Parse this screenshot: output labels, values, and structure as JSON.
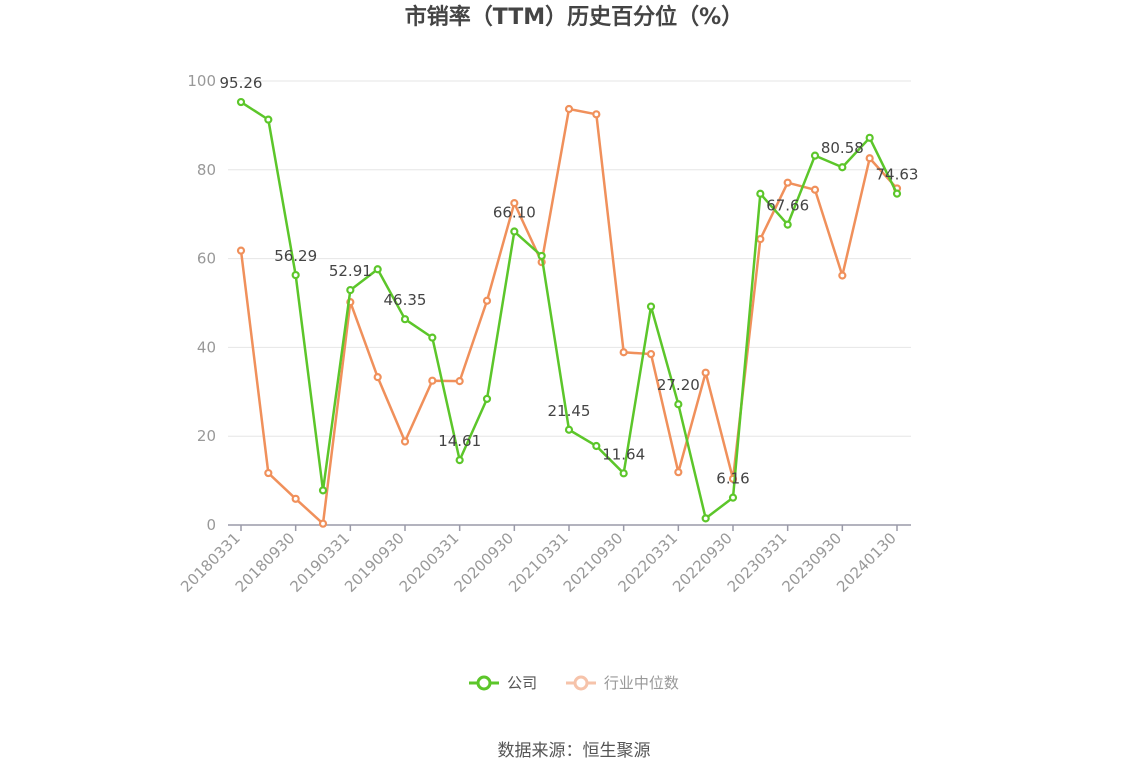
{
  "chart_data": {
    "type": "line",
    "title": "市销率（TTM）历史百分位（%）",
    "source": "数据来源：恒生聚源",
    "ylim": [
      0,
      100
    ],
    "yticks": [
      0,
      20,
      40,
      60,
      80,
      100
    ],
    "grid": true,
    "legend_position": "bottom",
    "x": [
      "20180331",
      "20180630",
      "20180930",
      "20181231",
      "20190331",
      "20190630",
      "20190930",
      "20191231",
      "20200331",
      "20200630",
      "20200930",
      "20201231",
      "20210331",
      "20210630",
      "20210930",
      "20211231",
      "20220331",
      "20220630",
      "20220930",
      "20221231",
      "20230331",
      "20230630",
      "20230930",
      "20231231",
      "20240130"
    ],
    "xticks": [
      "20180331",
      "20180930",
      "20190331",
      "20190930",
      "20200331",
      "20200930",
      "20210331",
      "20210930",
      "20220331",
      "20220930",
      "20230331",
      "20230930",
      "20240130"
    ],
    "series": [
      {
        "name": "公司",
        "color": "#5cc62a",
        "values": [
          95.26,
          91.3,
          56.29,
          7.8,
          52.91,
          57.6,
          46.35,
          42.2,
          14.61,
          28.4,
          66.1,
          60.6,
          21.45,
          17.8,
          11.64,
          49.2,
          27.2,
          1.5,
          6.16,
          74.6,
          67.66,
          83.2,
          80.58,
          87.2,
          74.63
        ],
        "labels": [
          "95.26",
          "",
          "56.29",
          "",
          "52.91",
          "",
          "46.35",
          "",
          "14.61",
          "",
          "66.10",
          "",
          "21.45",
          "",
          "11.64",
          "",
          "27.20",
          "",
          "6.16",
          "",
          "67.66",
          "",
          "80.58",
          "",
          "74.63"
        ]
      },
      {
        "name": "行业中位数",
        "color": "#f0905b",
        "values": [
          61.8,
          11.7,
          5.9,
          0.3,
          50.2,
          33.3,
          18.8,
          32.5,
          32.4,
          50.5,
          72.5,
          59.2,
          93.7,
          92.5,
          38.9,
          38.5,
          11.9,
          34.3,
          10.4,
          64.4,
          77.1,
          75.5,
          56.2,
          82.6,
          75.8
        ]
      }
    ]
  }
}
